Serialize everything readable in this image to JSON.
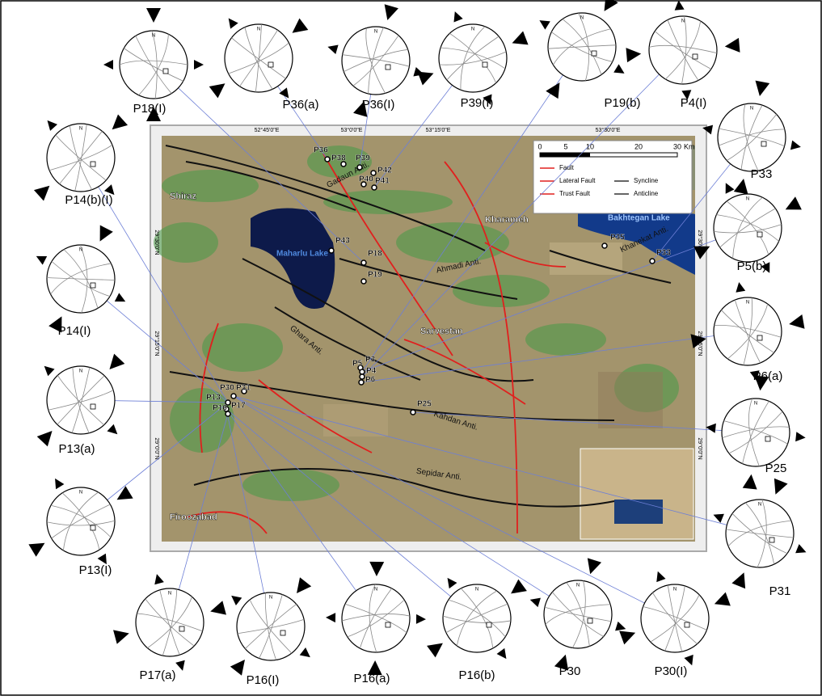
{
  "map": {
    "stereonets": [
      "P18(I)",
      "P36(a)",
      "P36(I)",
      "P39(I)",
      "P19(b)",
      "P4(I)",
      "P14(b)(I)",
      "P33",
      "P5(b)",
      "P14(I)",
      "P6(a)",
      "P13(a)",
      "P25",
      "P13(I)",
      "P31",
      "P17(a)",
      "P16(I)",
      "P16(a)",
      "P16(b)",
      "P30",
      "P30(I)"
    ],
    "north": "N",
    "places": [
      "Shiraz",
      "Kharameh",
      "Sarvestan",
      "Firoozabad"
    ],
    "lakes": [
      "Bakhtegan Lake",
      "Maharlu Lake"
    ],
    "anticlines": [
      "Gadaun Anti.",
      "Ahmadi Anti.",
      "Khanekat Anti.",
      "Ghara Anti.",
      "Kahdan Anti.",
      "Sepidar Anti."
    ],
    "stations": [
      "P36",
      "P38",
      "P39",
      "P42",
      "P40",
      "P41",
      "P43",
      "P18",
      "P19",
      "P35",
      "P33",
      "P5",
      "P3",
      "P4",
      "P6",
      "P25",
      "P30",
      "P31",
      "P13",
      "P16",
      "P17"
    ],
    "longitudes": [
      "52°45'0\"E",
      "53°0'0\"E",
      "53°15'0\"E",
      "53°30'0\"E"
    ],
    "latitudes": [
      "29°30'0\"N",
      "29°15'0\"N",
      "29°0'0\"N"
    ],
    "scale": {
      "labels": [
        "0",
        "5",
        "10",
        "20",
        "30"
      ],
      "unit": "Km"
    },
    "legend": [
      "Fault",
      "Lateral Fault",
      "Trust Fault",
      "Syncline",
      "Anticline"
    ]
  }
}
